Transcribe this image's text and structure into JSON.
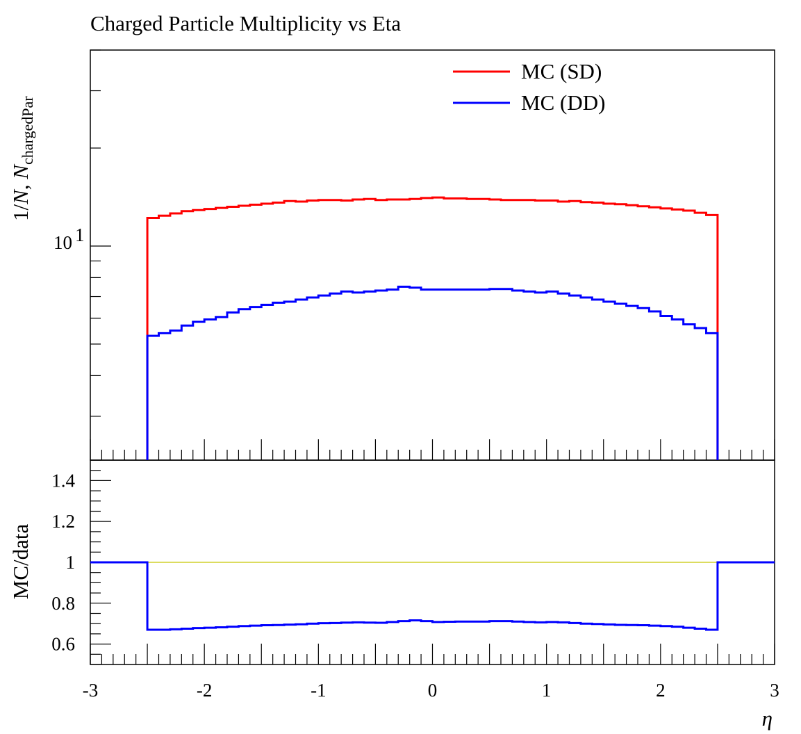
{
  "chart_data": {
    "type": "line",
    "title": "Charged Particle Multiplicity vs Eta",
    "main_panel": {
      "ylabel": "1/N, N_chargedPar",
      "ylabel_parts": {
        "prefix": "1/",
        "n1": "N",
        "sep": ", ",
        "n2": "N",
        "sub": "chargedPar"
      },
      "yscale": "log",
      "ylim": [
        2.2,
        40
      ],
      "xlim": [
        -3,
        3
      ],
      "y_tick_labels": [
        {
          "base": "10",
          "exp": "1",
          "value": 10
        }
      ],
      "bin_edges": [
        -2.5,
        -2.4,
        -2.3,
        -2.2,
        -2.1,
        -2.0,
        -1.9,
        -1.8,
        -1.7,
        -1.6,
        -1.5,
        -1.4,
        -1.3,
        -1.2,
        -1.1,
        -1.0,
        -0.9,
        -0.8,
        -0.7,
        -0.6,
        -0.5,
        -0.4,
        -0.3,
        -0.2,
        -0.1,
        0.0,
        0.1,
        0.2,
        0.3,
        0.4,
        0.5,
        0.6,
        0.7,
        0.8,
        0.9,
        1.0,
        1.1,
        1.2,
        1.3,
        1.4,
        1.5,
        1.6,
        1.7,
        1.8,
        1.9,
        2.0,
        2.1,
        2.2,
        2.3,
        2.4,
        2.5
      ],
      "series": [
        {
          "name": "MC (SD)",
          "color": "#ff0000",
          "values": [
            12.2,
            12.4,
            12.6,
            12.8,
            12.9,
            13.0,
            13.1,
            13.2,
            13.3,
            13.4,
            13.5,
            13.6,
            13.75,
            13.7,
            13.8,
            13.85,
            13.85,
            13.8,
            13.9,
            13.95,
            13.85,
            13.9,
            13.9,
            13.95,
            14.05,
            14.1,
            14.0,
            14.0,
            13.95,
            13.95,
            13.9,
            13.85,
            13.85,
            13.85,
            13.8,
            13.8,
            13.7,
            13.75,
            13.65,
            13.6,
            13.5,
            13.45,
            13.35,
            13.25,
            13.15,
            13.05,
            12.95,
            12.85,
            12.65,
            12.45
          ]
        },
        {
          "name": "MC (DD)",
          "color": "#0000ff",
          "values": [
            5.3,
            5.4,
            5.5,
            5.7,
            5.85,
            5.95,
            6.05,
            6.25,
            6.4,
            6.5,
            6.6,
            6.7,
            6.75,
            6.85,
            6.95,
            7.05,
            7.15,
            7.25,
            7.2,
            7.25,
            7.3,
            7.35,
            7.5,
            7.45,
            7.35,
            7.35,
            7.35,
            7.35,
            7.35,
            7.35,
            7.38,
            7.38,
            7.3,
            7.25,
            7.2,
            7.25,
            7.15,
            7.05,
            6.95,
            6.85,
            6.75,
            6.65,
            6.55,
            6.45,
            6.3,
            6.1,
            5.95,
            5.75,
            5.6,
            5.4
          ]
        }
      ]
    },
    "ratio_panel": {
      "ylabel": "MC/data",
      "ylim": [
        0.5,
        1.5
      ],
      "y_ticks": [
        0.6,
        0.8,
        1.0,
        1.2,
        1.4
      ],
      "y_tick_labels": [
        "0.6",
        "0.8",
        "1",
        "1.2",
        "1.4"
      ],
      "reference_line": {
        "value": 1.0,
        "color": "#c8c800"
      },
      "series": [
        {
          "name": "MC (DD) / data",
          "color": "#0000ff",
          "outside_value": 1.0,
          "values": [
            0.67,
            0.67,
            0.672,
            0.675,
            0.678,
            0.68,
            0.682,
            0.685,
            0.688,
            0.69,
            0.692,
            0.693,
            0.695,
            0.697,
            0.7,
            0.702,
            0.703,
            0.705,
            0.706,
            0.705,
            0.704,
            0.708,
            0.712,
            0.716,
            0.712,
            0.708,
            0.709,
            0.71,
            0.71,
            0.71,
            0.712,
            0.712,
            0.71,
            0.708,
            0.706,
            0.708,
            0.706,
            0.703,
            0.7,
            0.698,
            0.696,
            0.694,
            0.693,
            0.692,
            0.69,
            0.688,
            0.685,
            0.68,
            0.675,
            0.67
          ]
        }
      ]
    },
    "xlabel": "η",
    "x_ticks": [
      -3,
      -2,
      -1,
      0,
      1,
      2,
      3
    ],
    "x_tick_labels": [
      "-3",
      "-2",
      "-1",
      "0",
      "1",
      "2",
      "3"
    ],
    "legend": {
      "placement": "top-right",
      "entries": [
        {
          "label": "MC (SD)",
          "color": "#ff0000"
        },
        {
          "label": "MC (DD)",
          "color": "#0000ff"
        }
      ]
    },
    "grid": false
  }
}
